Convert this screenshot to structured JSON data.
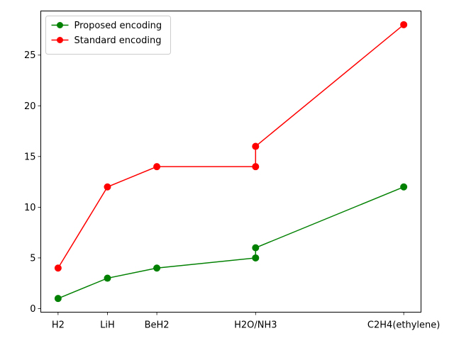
{
  "chart_data": {
    "type": "line",
    "title": "",
    "xlabel": "",
    "ylabel": "",
    "categories": [
      "H2",
      "LiH",
      "BeH2",
      "H2O/NH3",
      "C2H4(ethylene)"
    ],
    "x": [
      1,
      2,
      3,
      5,
      8
    ],
    "y_ticks": [
      0,
      5,
      10,
      15,
      20,
      25
    ],
    "xlim": [
      0.65,
      8.35
    ],
    "ylim": [
      -0.35,
      29.35
    ],
    "grid": false,
    "legend_position": "upper-left",
    "series": [
      {
        "name": "Proposed encoding",
        "color": "#008000",
        "points": [
          [
            1,
            1
          ],
          [
            2,
            3
          ],
          [
            3,
            4
          ],
          [
            5,
            5
          ],
          [
            5,
            6
          ],
          [
            8,
            12
          ]
        ]
      },
      {
        "name": "Standard encoding",
        "color": "#ff0000",
        "points": [
          [
            1,
            4
          ],
          [
            2,
            12
          ],
          [
            3,
            14
          ],
          [
            5,
            14
          ],
          [
            5,
            16
          ],
          [
            8,
            28
          ]
        ]
      }
    ]
  }
}
